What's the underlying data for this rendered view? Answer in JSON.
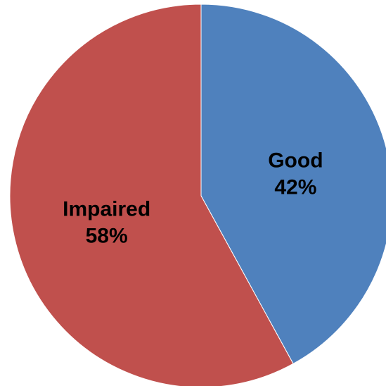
{
  "chart_data": {
    "type": "pie",
    "title": "",
    "slices": [
      {
        "label": "Good",
        "value": 42,
        "value_label": "42%",
        "color": "#4F81BD"
      },
      {
        "label": "Impaired",
        "value": 58,
        "value_label": "58%",
        "color": "#C0504D"
      }
    ],
    "start_angle_deg": 0,
    "direction": "clockwise",
    "legend": "none"
  }
}
